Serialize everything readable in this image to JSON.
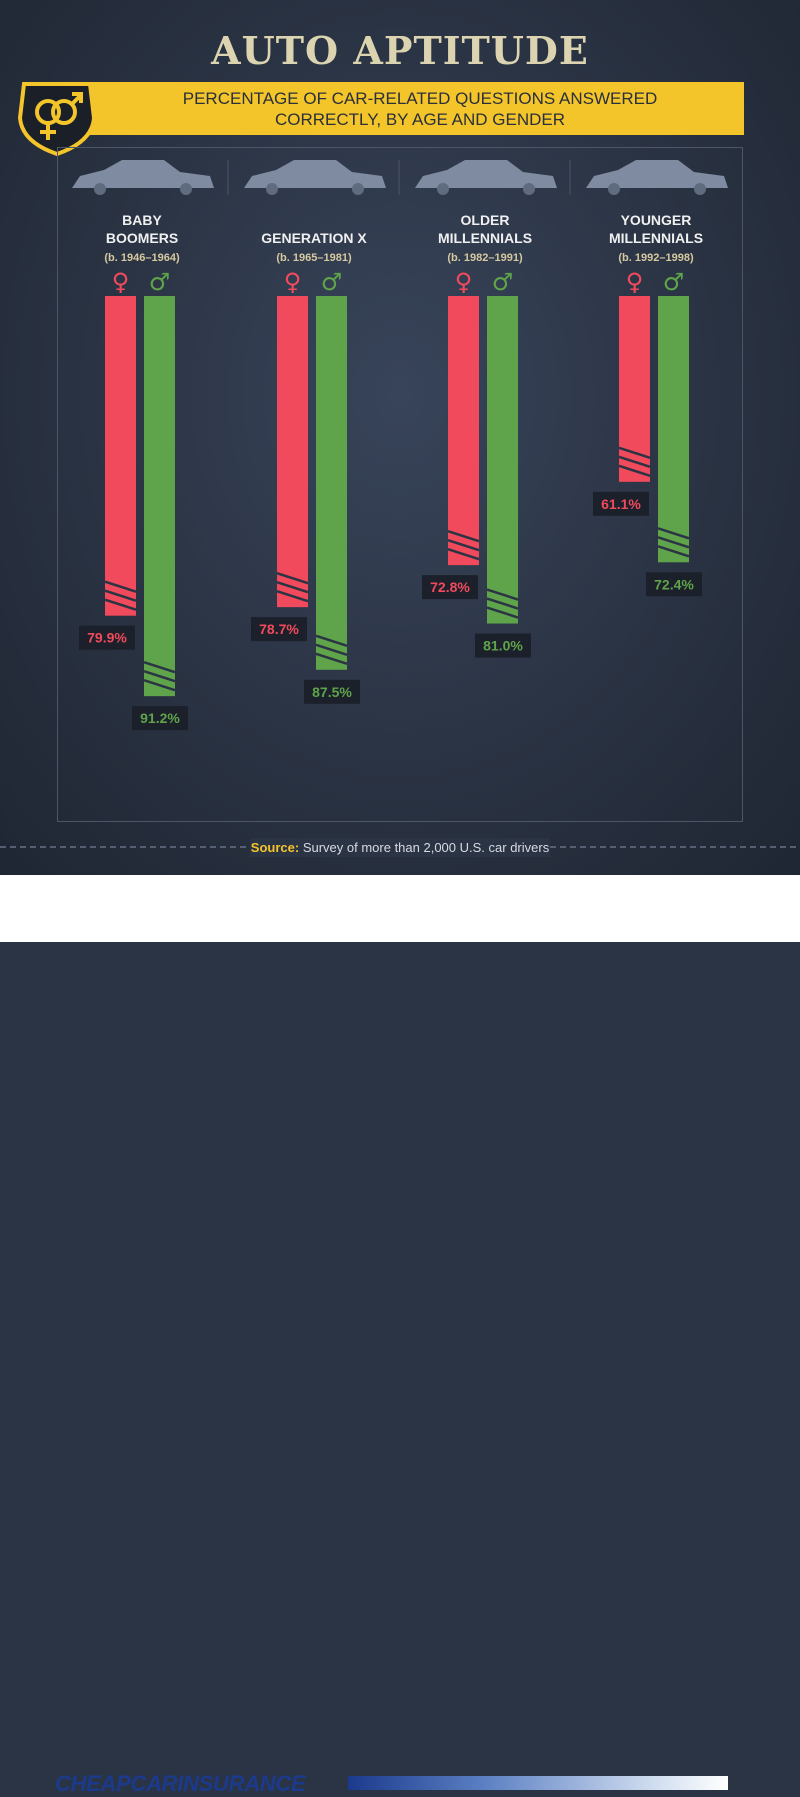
{
  "title": "AUTO APTITUDE",
  "subtitle_line1": "PERCENTAGE OF CAR-RELATED QUESTIONS ANSWERED",
  "subtitle_line2": "CORRECTLY, BY AGE AND GENDER",
  "icon": "gender-symbols-badge-icon",
  "colors": {
    "female": "#f04a5c",
    "male": "#5fa44a",
    "banner": "#f3c52a",
    "background": "#2b3444",
    "label_bg": "#1b202a"
  },
  "chart_data": {
    "type": "bar",
    "categories": [
      {
        "name": "BABY BOOMERS",
        "line1": "BABY",
        "line2": "BOOMERS",
        "years": "(b. 1946–1964)"
      },
      {
        "name": "GENERATION X",
        "line1": "",
        "line2": "GENERATION X",
        "years": "(b. 1965–1981)"
      },
      {
        "name": "OLDER MILLENNIALS",
        "line1": "OLDER",
        "line2": "MILLENNIALS",
        "years": "(b. 1982–1991)"
      },
      {
        "name": "YOUNGER MILLENNIALS",
        "line1": "YOUNGER",
        "line2": "MILLENNIALS",
        "years": "(b. 1992–1998)"
      }
    ],
    "series": [
      {
        "symbol": "♀",
        "values": [
          79.9,
          78.7,
          72.8,
          61.1
        ],
        "labels": [
          "79.9%",
          "78.7%",
          "72.8%",
          "61.1%"
        ]
      },
      {
        "symbol": "♂",
        "values": [
          91.2,
          87.5,
          81.0,
          72.4
        ],
        "labels": [
          "91.2%",
          "87.5%",
          "81.0%",
          "72.4%"
        ]
      }
    ],
    "unit": "%",
    "grid": false,
    "legend": "symbols above each column"
  },
  "source": {
    "label": "Source:",
    "text": "Survey of more than 2,000 U.S. car drivers"
  },
  "footer": {
    "logo_text": "CHEAPCARINSURANCE"
  }
}
